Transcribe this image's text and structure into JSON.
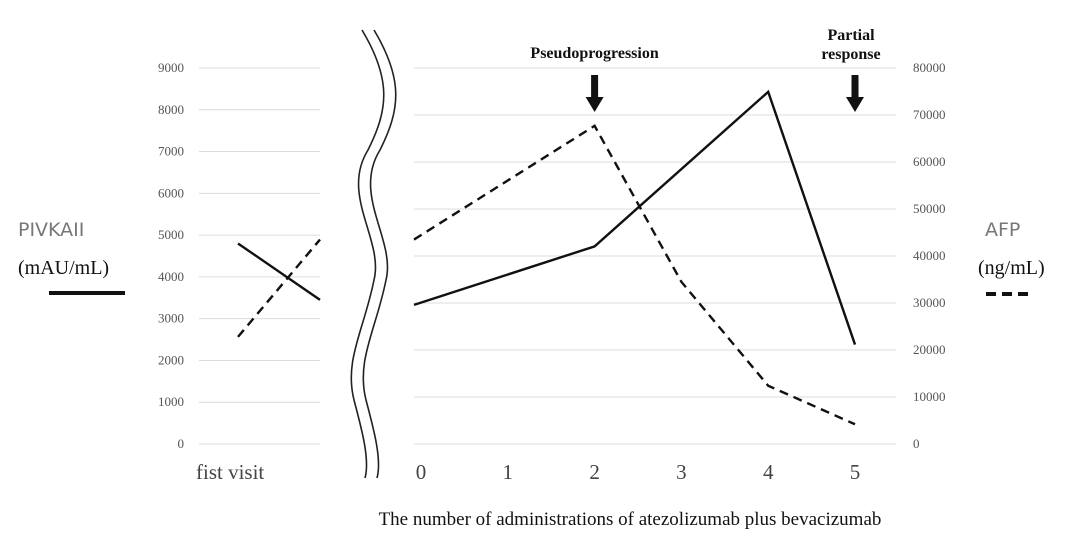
{
  "chart_data": {
    "type": "line",
    "title": "",
    "xlabel": "The number of administrations of atezolizumab plus bevacizumab",
    "first_visit_label": "fist visit",
    "categories": [
      "0",
      "1",
      "2",
      "3",
      "4",
      "5"
    ],
    "y_left": {
      "label_top": "PIVKAII",
      "label_unit": "(mAU/mL)",
      "ylim": [
        0,
        9000
      ],
      "ticks": [
        "0",
        "1000",
        "2000",
        "3000",
        "4000",
        "5000",
        "6000",
        "7000",
        "8000",
        "9000"
      ]
    },
    "y_right": {
      "label_top": "AFP",
      "label_unit": "(ng/mL)",
      "ylim": [
        0,
        80000
      ],
      "ticks": [
        "0",
        "10000",
        "20000",
        "30000",
        "40000",
        "50000",
        "60000",
        "70000",
        "80000"
      ]
    },
    "series": [
      {
        "name": "PIVKAII",
        "axis": "left",
        "style": "solid",
        "first_visit": [
          4800,
          3450
        ],
        "values": [
          3330,
          null,
          4730,
          null,
          8430,
          2380
        ]
      },
      {
        "name": "AFP",
        "axis": "right",
        "style": "dashed",
        "first_visit": [
          22800,
          43500
        ],
        "values": [
          43500,
          null,
          67700,
          34500,
          12400,
          4200
        ]
      }
    ],
    "annotations": [
      {
        "lines": [
          "Pseudoprogression"
        ],
        "at": 2
      },
      {
        "lines": [
          "Partial",
          "response"
        ],
        "at": 5
      }
    ]
  }
}
